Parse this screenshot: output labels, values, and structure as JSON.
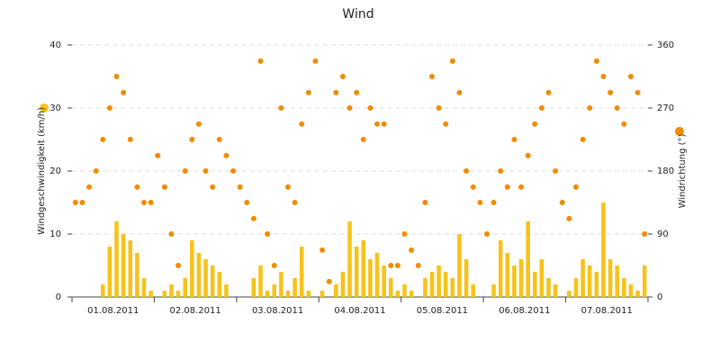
{
  "chart_data": {
    "type": "bar-scatter",
    "title": "Wind",
    "categories": [
      null,
      null,
      null,
      null,
      null,
      null,
      "01.08.2011",
      null,
      null,
      null,
      null,
      null,
      null,
      null,
      null,
      null,
      null,
      null,
      "02.08.2011",
      null,
      null,
      null,
      null,
      null,
      null,
      null,
      null,
      null,
      null,
      null,
      "03.08.2011",
      null,
      null,
      null,
      null,
      null,
      null,
      null,
      null,
      null,
      null,
      null,
      "04.08.2011",
      null,
      null,
      null,
      null,
      null,
      null,
      null,
      null,
      null,
      null,
      null,
      "05.08.2011",
      null,
      null,
      null,
      null,
      null,
      null,
      null,
      null,
      null,
      null,
      null,
      "06.08.2011",
      null,
      null,
      null,
      null,
      null,
      null,
      null,
      null,
      null,
      null,
      null,
      "07.08.2011",
      null,
      null,
      null,
      null,
      null
    ],
    "series": [
      {
        "name": "Windgeschwindigkeit (km/h)",
        "type": "bar",
        "axis": "y",
        "color": "#f7c21b",
        "values": [
          0,
          0,
          0,
          0,
          2,
          8,
          12,
          10,
          9,
          7,
          3,
          1,
          0,
          1,
          2,
          1,
          3,
          9,
          7,
          6,
          5,
          4,
          2,
          0,
          0,
          0,
          3,
          5,
          1,
          2,
          4,
          1,
          3,
          8,
          1,
          0,
          1,
          0,
          2,
          4,
          12,
          8,
          9,
          6,
          7,
          5,
          3,
          1,
          2,
          1,
          0,
          3,
          4,
          5,
          4,
          3,
          10,
          6,
          2,
          0,
          0,
          2,
          9,
          7,
          5,
          6,
          12,
          4,
          6,
          3,
          2,
          0,
          1,
          3,
          6,
          5,
          4,
          15,
          6,
          5,
          3,
          2,
          1,
          5
        ]
      },
      {
        "name": "Windrichtung (°)",
        "type": "scatter",
        "axis": "y2",
        "color": "#f08c00",
        "values": [
          135,
          135,
          157,
          180,
          225,
          270,
          315,
          292,
          225,
          157,
          135,
          135,
          202,
          157,
          90,
          45,
          180,
          225,
          247,
          180,
          157,
          225,
          202,
          180,
          157,
          135,
          112,
          337,
          90,
          45,
          270,
          157,
          135,
          247,
          292,
          337,
          67,
          22,
          292,
          315,
          270,
          292,
          225,
          270,
          247,
          247,
          45,
          45,
          90,
          67,
          45,
          135,
          315,
          270,
          247,
          337,
          292,
          180,
          157,
          135,
          90,
          135,
          180,
          157,
          225,
          157,
          202,
          247,
          270,
          292,
          180,
          135,
          112,
          157,
          225,
          270,
          337,
          315,
          292,
          270,
          247,
          315,
          292,
          90
        ]
      }
    ],
    "ylim": [
      0,
      40
    ],
    "yticks": [
      0,
      10,
      20,
      30,
      40
    ],
    "y2lim": [
      0,
      360
    ],
    "y2ticks": [
      0,
      90,
      180,
      270,
      360
    ],
    "grid": true
  }
}
